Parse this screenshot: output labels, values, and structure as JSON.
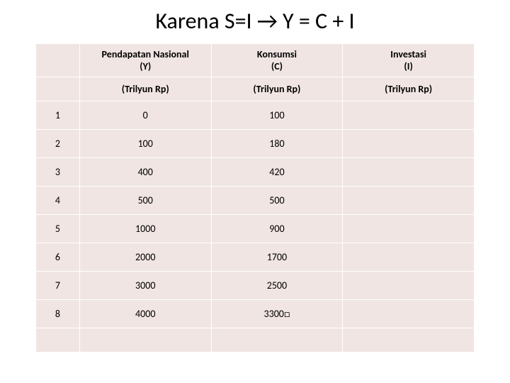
{
  "title": "Karena S=I → Y = C + I",
  "table": {
    "headers": {
      "idx": "",
      "y": "Pendapatan Nasional\n(Y)",
      "c": "Konsumsi\n(C)",
      "i": "Investasi\n(I)"
    },
    "subheaders": {
      "idx": "",
      "y": "(Trilyun Rp)",
      "c": "(Trilyun Rp)",
      "i": "(Trilyun Rp)"
    },
    "rows": [
      {
        "idx": "1",
        "y": "0",
        "c": "100",
        "i": ""
      },
      {
        "idx": "2",
        "y": "100",
        "c": "180",
        "i": ""
      },
      {
        "idx": "3",
        "y": "400",
        "c": "420",
        "i": ""
      },
      {
        "idx": "4",
        "y": "500",
        "c": "500",
        "i": ""
      },
      {
        "idx": "5",
        "y": "1000",
        "c": "900",
        "i": ""
      },
      {
        "idx": "6",
        "y": "2000",
        "c": "1700",
        "i": ""
      },
      {
        "idx": "7",
        "y": "3000",
        "c": "2500",
        "i": ""
      },
      {
        "idx": "8",
        "y": "4000",
        "c": "3300□",
        "i": ""
      }
    ],
    "colors": {
      "cell_bg": "#f0e5e2",
      "border": "#ffffff",
      "text": "#000000"
    }
  }
}
